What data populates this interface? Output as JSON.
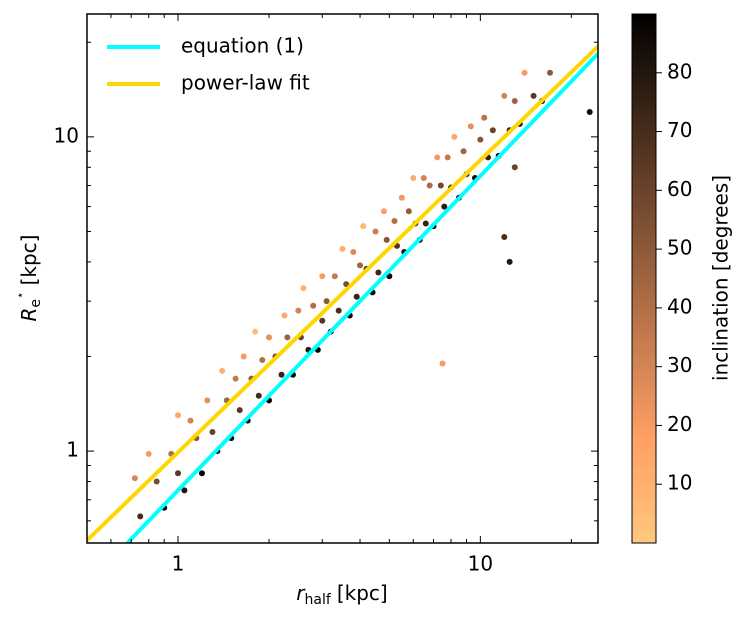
{
  "chart_data": {
    "type": "scatter",
    "xlabel": {
      "symbol": "r",
      "subscript": "half",
      "unit": "[kpc]"
    },
    "ylabel": {
      "symbol": "R",
      "subscript": "e",
      "superscript": "⋆",
      "unit": "[kpc]"
    },
    "colorbar_label": "inclination [degrees]",
    "xscale": "log",
    "yscale": "log",
    "xlim": [
      0.5,
      24.5
    ],
    "ylim": [
      0.51,
      24.6
    ],
    "xticks": [
      1,
      10
    ],
    "yticks": [
      1,
      10
    ],
    "xticks_minor": [
      0.6,
      0.7,
      0.8,
      0.9,
      2,
      3,
      4,
      5,
      6,
      7,
      8,
      9,
      20
    ],
    "yticks_minor": [
      0.6,
      0.7,
      0.8,
      0.9,
      2,
      3,
      4,
      5,
      6,
      7,
      8,
      9,
      20
    ],
    "clim": [
      0,
      90
    ],
    "cticks": [
      10,
      20,
      30,
      40,
      50,
      60,
      70,
      80
    ],
    "colormap": "copper_r",
    "legend": "upper left",
    "x": [
      0.72,
      0.75,
      0.8,
      0.85,
      0.9,
      0.95,
      1.0,
      1.0,
      1.05,
      1.1,
      1.15,
      1.2,
      1.25,
      1.3,
      1.35,
      1.4,
      1.45,
      1.5,
      1.55,
      1.6,
      1.65,
      1.7,
      1.75,
      1.8,
      1.85,
      1.9,
      2.0,
      2.0,
      2.1,
      2.2,
      2.25,
      2.3,
      2.4,
      2.5,
      2.55,
      2.6,
      2.7,
      2.8,
      2.9,
      3.0,
      3.0,
      3.1,
      3.2,
      3.3,
      3.4,
      3.5,
      3.6,
      3.7,
      3.8,
      3.9,
      4.0,
      4.1,
      4.2,
      4.4,
      4.5,
      4.6,
      4.8,
      4.9,
      5.0,
      5.2,
      5.3,
      5.5,
      5.6,
      5.8,
      6.0,
      6.1,
      6.3,
      6.5,
      6.6,
      6.8,
      7.0,
      7.2,
      7.4,
      7.6,
      7.8,
      8.0,
      8.2,
      8.5,
      8.8,
      9.0,
      9.3,
      9.6,
      10.0,
      10.3,
      10.6,
      11.0,
      11.5,
      12.0,
      12.5,
      13.0,
      13.5,
      14.0,
      15.0,
      16.0,
      17.0,
      7.5,
      12.5,
      12.0,
      23.0,
      13.0
    ],
    "y": [
      0.82,
      0.62,
      0.98,
      0.8,
      0.66,
      0.98,
      1.3,
      0.85,
      0.75,
      1.25,
      1.1,
      0.85,
      1.45,
      1.15,
      1.0,
      1.8,
      1.45,
      1.1,
      1.7,
      1.35,
      2.0,
      1.25,
      1.7,
      2.4,
      1.5,
      1.95,
      1.45,
      2.3,
      2.0,
      1.75,
      2.7,
      2.3,
      1.75,
      2.8,
      2.3,
      3.3,
      2.1,
      2.9,
      2.1,
      3.6,
      2.6,
      3.0,
      2.4,
      3.6,
      2.8,
      4.4,
      3.4,
      2.7,
      4.3,
      3.1,
      3.9,
      5.2,
      3.8,
      3.2,
      5.0,
      3.7,
      5.8,
      4.7,
      3.6,
      5.4,
      4.5,
      6.4,
      4.3,
      5.8,
      7.4,
      5.3,
      4.7,
      7.4,
      5.3,
      7.0,
      5.2,
      8.6,
      7.0,
      6.0,
      8.6,
      6.9,
      10.0,
      6.4,
      9.0,
      7.6,
      10.8,
      7.4,
      9.8,
      11.5,
      8.6,
      10.5,
      8.7,
      13.5,
      10.5,
      13.0,
      11.0,
      16.0,
      13.5,
      13.0,
      16.0,
      1.9,
      4.0,
      4.8,
      12.0,
      8.0
    ],
    "c": [
      30,
      70,
      20,
      55,
      85,
      40,
      15,
      65,
      80,
      30,
      50,
      88,
      25,
      60,
      75,
      10,
      45,
      85,
      35,
      65,
      20,
      80,
      50,
      5,
      70,
      40,
      88,
      25,
      55,
      75,
      15,
      45,
      85,
      30,
      60,
      10,
      78,
      40,
      88,
      20,
      65,
      50,
      82,
      35,
      70,
      12,
      55,
      86,
      28,
      75,
      45,
      8,
      62,
      85,
      33,
      72,
      18,
      52,
      88,
      40,
      68,
      22,
      80,
      48,
      12,
      64,
      86,
      30,
      74,
      42,
      88,
      20,
      58,
      78,
      35,
      66,
      15,
      84,
      45,
      70,
      25,
      85,
      52,
      38,
      76,
      60,
      88,
      30,
      72,
      45,
      82,
      20,
      65,
      85,
      50,
      20,
      80,
      70,
      85,
      60
    ],
    "series": [
      {
        "name": "equation (1)",
        "color": "#00ffff",
        "x": [
          0.68,
          24.5
        ],
        "y": [
          0.51,
          18.4
        ]
      },
      {
        "name": "power-law fit",
        "color": "#ffd700",
        "x": [
          0.5,
          24.5
        ],
        "y": [
          0.52,
          19.4
        ]
      }
    ]
  }
}
